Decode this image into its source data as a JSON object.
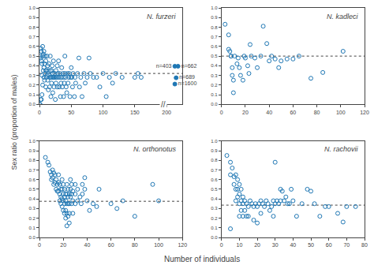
{
  "xlabel": "Number of individuals",
  "ylabel": "Sex ratio (proportion of males)",
  "chart_data": [
    {
      "type": "scatter",
      "title": "N. furzeri",
      "grid": false,
      "xlim": [
        0,
        225
      ],
      "ylim": [
        0,
        1
      ],
      "xticks": [
        0,
        50,
        100,
        150,
        200
      ],
      "yticks": [
        {
          "value": 0,
          "label": "0.0"
        },
        0.1,
        0.2,
        0.3,
        0.4,
        0.5,
        0.6,
        0.7,
        0.8,
        0.9,
        {
          "value": 1,
          "label": "1.0"
        }
      ],
      "hline": 0.32,
      "axis_break": {
        "x": 194.625,
        "text": "//"
      },
      "series": [
        {
          "marker": "open circle",
          "color": "#1f77b4",
          "x": [
            1,
            2,
            2,
            3,
            3,
            4,
            4,
            5,
            5,
            5,
            6,
            6,
            7,
            7,
            7,
            8,
            8,
            9,
            9,
            10,
            10,
            10,
            11,
            11,
            12,
            12,
            13,
            13,
            14,
            14,
            15,
            15,
            16,
            16,
            17,
            17,
            18,
            18,
            19,
            19,
            20,
            20,
            21,
            21,
            22,
            22,
            23,
            23,
            24,
            25,
            25,
            26,
            26,
            27,
            28,
            28,
            29,
            30,
            30,
            31,
            32,
            33,
            33,
            34,
            35,
            35,
            36,
            37,
            38,
            38,
            39,
            40,
            40,
            41,
            42,
            43,
            44,
            45,
            46,
            47,
            48,
            49,
            50,
            51,
            52,
            53,
            55,
            56,
            57,
            60,
            62,
            63,
            65,
            67,
            70,
            72,
            75,
            78,
            80,
            85,
            90,
            95,
            100,
            105,
            110,
            115,
            120,
            130,
            150,
            155,
            160,
            0,
            1,
            2,
            3,
            4
          ],
          "values": [
            0.5,
            0.58,
            0.48,
            0.45,
            0.55,
            0.42,
            0.3,
            0.6,
            0.5,
            0.2,
            0.35,
            0.52,
            0.55,
            0.38,
            0.28,
            0.25,
            0.42,
            0.32,
            0.5,
            0.35,
            0.18,
            0.45,
            0.35,
            0.28,
            0.5,
            0.3,
            0.25,
            0.4,
            0.35,
            0.15,
            0.3,
            0.42,
            0.28,
            0.18,
            0.35,
            0.5,
            0.08,
            0.28,
            0.22,
            0.35,
            0.28,
            0.4,
            0.12,
            0.32,
            0.28,
            0.45,
            0.28,
            0.18,
            0.32,
            0.28,
            0.05,
            0.22,
            0.35,
            0.28,
            0.4,
            0.18,
            0.32,
            0.28,
            0.45,
            0.18,
            0.32,
            0.08,
            0.28,
            0.22,
            0.38,
            0.28,
            0.18,
            0.32,
            0.08,
            0.28,
            0.22,
            0.32,
            0.5,
            0.28,
            0.18,
            0.12,
            0.32,
            0.22,
            0.28,
            0.32,
            0.08,
            0.28,
            0.38,
            0.28,
            0.18,
            0.32,
            0.08,
            0.28,
            0.22,
            0.32,
            0.48,
            0.18,
            0.28,
            0.08,
            0.32,
            0.22,
            0.28,
            0.48,
            0.32,
            0.28,
            0.28,
            0.18,
            0.32,
            0.08,
            0.28,
            0.22,
            0.32,
            0.28,
            0.28,
            0.32,
            0.28,
            0,
            0,
            0.05,
            0.05,
            0.1
          ]
        },
        {
          "marker": "filled circle",
          "color": "#1f77b4",
          "x": [
            213,
            218,
            215,
            213
          ],
          "values": [
            0.395,
            0.395,
            0.275,
            0.21
          ],
          "labels": [
            "n=403",
            "n=662",
            "n=689",
            "n=1600"
          ]
        }
      ]
    },
    {
      "type": "scatter",
      "title": "N. kadleci",
      "grid": false,
      "xlim": [
        0,
        120
      ],
      "ylim": [
        0,
        1
      ],
      "xticks": [
        0,
        20,
        40,
        60,
        80,
        100,
        120
      ],
      "yticks": [
        {
          "value": 0,
          "label": "0.0"
        },
        0.1,
        0.2,
        0.3,
        0.4,
        0.5,
        0.6,
        0.7,
        0.8,
        0.9,
        {
          "value": 1,
          "label": "1.0"
        }
      ],
      "hline": 0.5,
      "series": [
        {
          "marker": "open circle",
          "color": "#1f77b4",
          "x": [
            3,
            6,
            6,
            7,
            8,
            8,
            9,
            9,
            10,
            10,
            11,
            13,
            14,
            15,
            16,
            18,
            19,
            20,
            22,
            23,
            24,
            25,
            28,
            30,
            33,
            35,
            38,
            40,
            42,
            45,
            48,
            50,
            55,
            60,
            65,
            75,
            85,
            102
          ],
          "values": [
            0.83,
            0.72,
            0.57,
            0.55,
            0.5,
            0.5,
            0.38,
            0.3,
            0.25,
            0.12,
            0.5,
            0.42,
            0.48,
            0.38,
            0.3,
            0.25,
            0.5,
            0.48,
            0.4,
            0.32,
            0.62,
            0.5,
            0.48,
            0.38,
            0.5,
            0.81,
            0.63,
            0.45,
            0.5,
            0.47,
            0.38,
            0.45,
            0.47,
            0.47,
            0.5,
            0.27,
            0.33,
            0.55
          ]
        }
      ]
    },
    {
      "type": "scatter",
      "title": "N. orthonotus",
      "grid": false,
      "xlim": [
        0,
        120
      ],
      "ylim": [
        0,
        1
      ],
      "xticks": [
        0,
        20,
        40,
        60,
        80,
        100,
        120
      ],
      "yticks": [
        {
          "value": 0,
          "label": "0.0"
        },
        0.1,
        0.2,
        0.3,
        0.4,
        0.5,
        0.6,
        0.7,
        0.8,
        0.9,
        {
          "value": 1,
          "label": "1.0"
        }
      ],
      "hline": 0.375,
      "series": [
        {
          "marker": "open circle",
          "color": "#1f77b4",
          "x": [
            5,
            7,
            8,
            9,
            10,
            10,
            11,
            11,
            12,
            12,
            13,
            13,
            14,
            14,
            15,
            15,
            16,
            16,
            16,
            17,
            17,
            17,
            18,
            18,
            18,
            19,
            19,
            19,
            19,
            20,
            20,
            20,
            20,
            21,
            21,
            21,
            21,
            22,
            22,
            22,
            22,
            23,
            23,
            23,
            23,
            23,
            24,
            24,
            24,
            24,
            25,
            25,
            25,
            25,
            26,
            26,
            26,
            27,
            27,
            27,
            28,
            28,
            28,
            30,
            30,
            30,
            32,
            32,
            34,
            35,
            36,
            36,
            38,
            38,
            40,
            42,
            45,
            48,
            50,
            60,
            65,
            70,
            80,
            95,
            100
          ],
          "values": [
            0.83,
            0.78,
            0.75,
            0.68,
            0.65,
            0.6,
            0.7,
            0.62,
            0.67,
            0.55,
            0.65,
            0.57,
            0.6,
            0.5,
            0.55,
            0.48,
            0.65,
            0.57,
            0.48,
            0.55,
            0.45,
            0.38,
            0.5,
            0.42,
            0.35,
            0.6,
            0.5,
            0.4,
            0.32,
            0.55,
            0.45,
            0.38,
            0.28,
            0.5,
            0.42,
            0.35,
            0.25,
            0.45,
            0.38,
            0.28,
            0.2,
            0.55,
            0.45,
            0.35,
            0.25,
            0.12,
            0.5,
            0.42,
            0.35,
            0.22,
            0.45,
            0.35,
            0.25,
            0.15,
            0.6,
            0.5,
            0.42,
            0.55,
            0.45,
            0.35,
            0.48,
            0.38,
            0.25,
            0.55,
            0.45,
            0.35,
            0.5,
            0.38,
            0.42,
            0.35,
            0.55,
            0.45,
            0.62,
            0.5,
            0.38,
            0.28,
            0.35,
            0.32,
            0.5,
            0.35,
            0.3,
            0.38,
            0.22,
            0.55,
            0.38
          ]
        }
      ]
    },
    {
      "type": "scatter",
      "title": "N. rachovii",
      "grid": false,
      "xlim": [
        0,
        80
      ],
      "ylim": [
        0,
        1
      ],
      "xticks": [
        0,
        10,
        20,
        30,
        40,
        50,
        60,
        70,
        80
      ],
      "yticks": [
        {
          "value": 0,
          "label": "0.0"
        },
        0.1,
        0.2,
        0.3,
        0.4,
        0.5,
        0.6,
        0.7,
        0.8,
        0.9,
        {
          "value": 1,
          "label": "1.0"
        }
      ],
      "hline": 0.335,
      "series": [
        {
          "marker": "open circle",
          "color": "#1f77b4",
          "x": [
            3,
            5,
            5,
            6,
            7,
            7,
            8,
            8,
            8,
            9,
            9,
            9,
            10,
            10,
            10,
            10,
            11,
            11,
            11,
            12,
            12,
            12,
            13,
            13,
            14,
            14,
            15,
            15,
            16,
            17,
            18,
            18,
            19,
            20,
            20,
            21,
            22,
            22,
            23,
            24,
            25,
            26,
            27,
            28,
            29,
            29,
            30,
            30,
            31,
            32,
            33,
            33,
            34,
            35,
            36,
            37,
            38,
            39,
            40,
            42,
            45,
            48,
            50,
            52,
            55,
            58,
            60,
            65,
            68,
            70,
            75,
            5
          ],
          "values": [
            0.85,
            0.78,
            0.65,
            0.72,
            0.63,
            0.55,
            0.65,
            0.5,
            0.38,
            0.6,
            0.5,
            0.42,
            0.55,
            0.45,
            0.35,
            0.22,
            0.5,
            0.38,
            0.28,
            0.42,
            0.35,
            0.22,
            0.38,
            0.28,
            0.35,
            0.22,
            0.32,
            0.22,
            0.38,
            0.35,
            0.32,
            0.18,
            0.35,
            0.32,
            0.15,
            0.35,
            0.38,
            0.25,
            0.35,
            0.32,
            0.38,
            0.35,
            0.28,
            0.32,
            0.38,
            0.22,
            0.78,
            0.35,
            0.38,
            0.35,
            0.5,
            0.38,
            0.48,
            0.38,
            0.42,
            0.35,
            0.35,
            0.5,
            0.38,
            0.22,
            0.35,
            0.5,
            0.48,
            0.35,
            0.22,
            0.32,
            0.32,
            0.25,
            0.16,
            0.32,
            0.32,
            0.09
          ]
        }
      ]
    }
  ]
}
